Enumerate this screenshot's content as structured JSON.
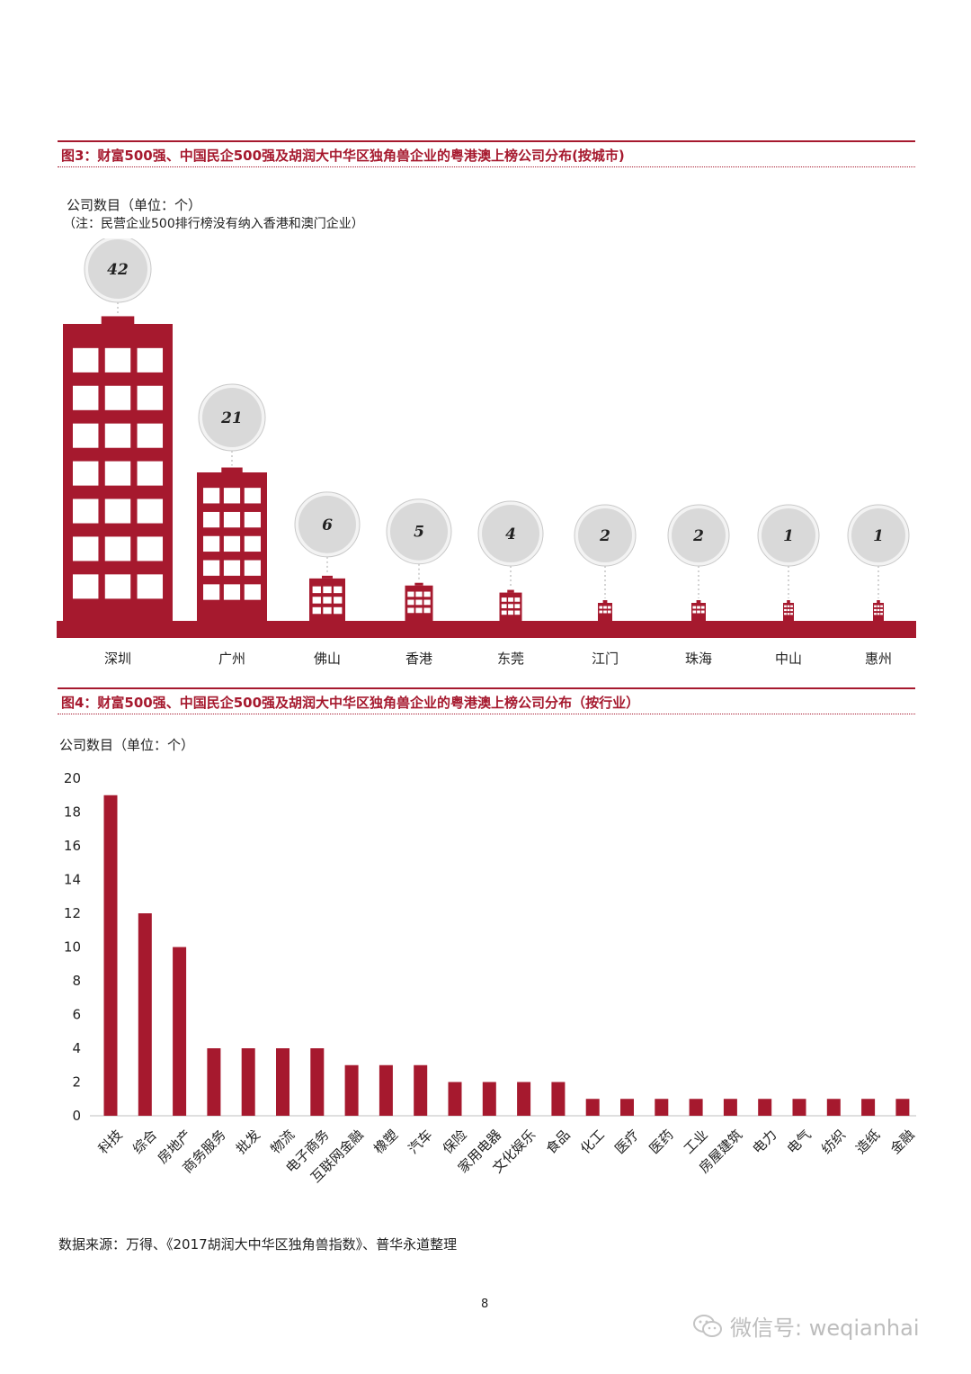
{
  "fig3": {
    "title": "图3：财富500强、中国民企500强及胡润大中华区独角兽企业的粤港澳上榜公司分布(按城市)",
    "unit_label": "公司数目（单位：个）",
    "note": "（注：民营企业500排行榜没有纳入香港和澳门企业）"
  },
  "fig4": {
    "title": "图4：财富500强、中国民企500强及胡润大中华区独角兽企业的粤港澳上榜公司分布（按行业）",
    "unit_label": "公司数目（单位：个）"
  },
  "source": "数据来源：万得、《2017胡润大中华区独角兽指数》、普华永道整理",
  "page_number": "8",
  "watermark": "微信号: weqianhai",
  "colors": {
    "accent": "#a6192e",
    "bubble": "#d9d9d9",
    "window": "#ffffff"
  },
  "chart_data": [
    {
      "type": "bar",
      "categories": [
        "深圳",
        "广州",
        "佛山",
        "香港",
        "东莞",
        "江门",
        "珠海",
        "中山",
        "惠州"
      ],
      "values": [
        42,
        21,
        6,
        5,
        4,
        2,
        2,
        1,
        1
      ],
      "value_labels": [
        "42",
        "21",
        "6",
        "5",
        "4",
        "2",
        "2",
        "1",
        "1"
      ],
      "ylabel": "公司数目（单位：个）"
    },
    {
      "type": "bar",
      "categories": [
        "科技",
        "综合",
        "房地产",
        "商务服务",
        "批发",
        "物流",
        "电子商务",
        "互联网金融",
        "橡塑",
        "汽车",
        "保险",
        "家用电器",
        "文化娱乐",
        "食品",
        "化工",
        "医疗",
        "医药",
        "工业",
        "房屋建筑",
        "电力",
        "电气",
        "纺织",
        "造纸",
        "金融"
      ],
      "values": [
        19,
        12,
        10,
        4,
        4,
        4,
        4,
        3,
        3,
        3,
        2,
        2,
        2,
        2,
        1,
        1,
        1,
        1,
        1,
        1,
        1,
        1,
        1,
        1
      ],
      "ylim": [
        0,
        20
      ],
      "yticks": [
        "0",
        "2",
        "4",
        "6",
        "8",
        "10",
        "12",
        "14",
        "16",
        "18",
        "20"
      ],
      "ylabel": "公司数目（单位：个）"
    }
  ]
}
